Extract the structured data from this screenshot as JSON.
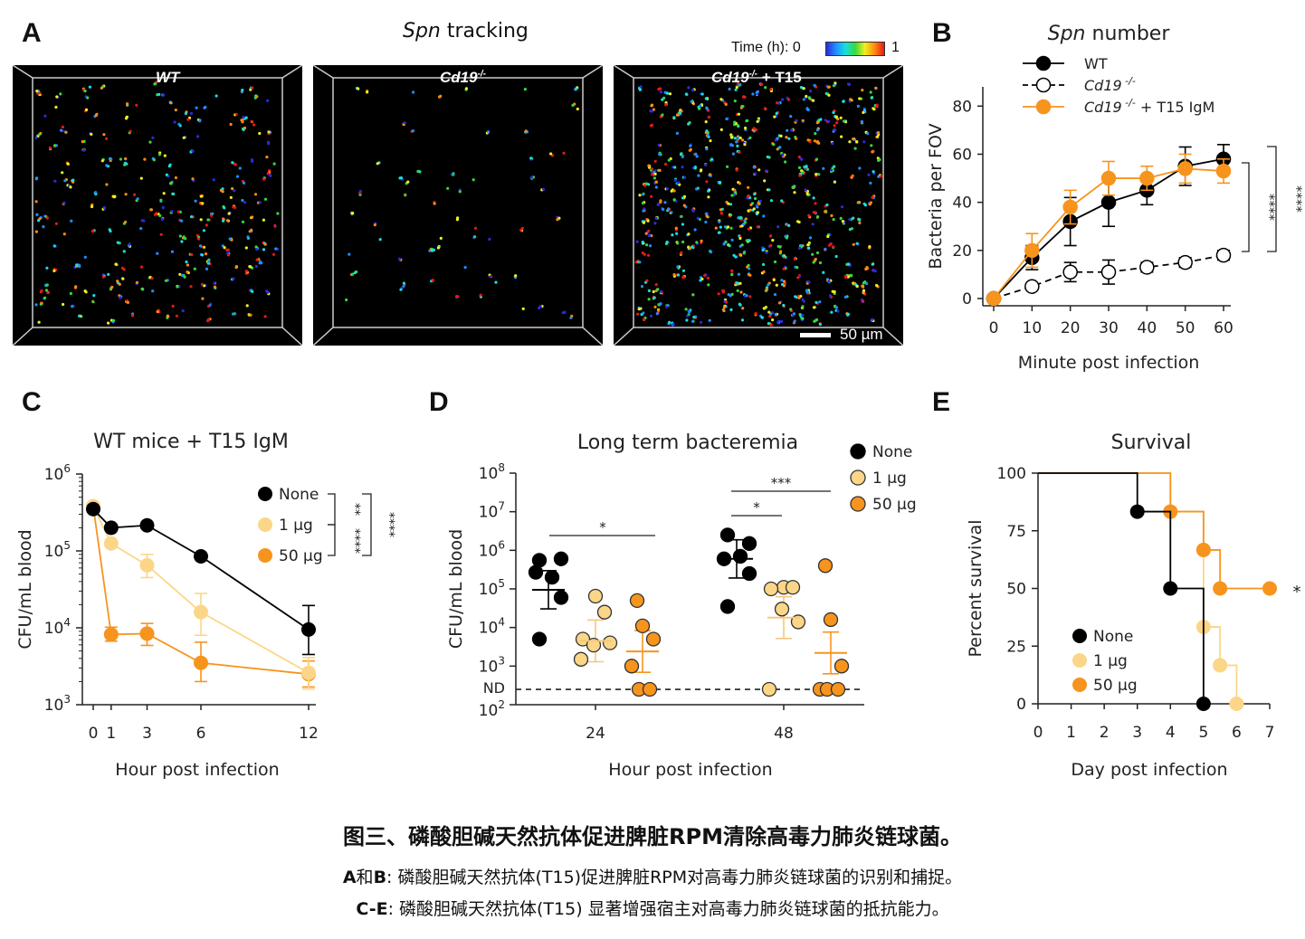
{
  "panels": {
    "A": {
      "letter": "A",
      "title_italic": "Spn",
      "title_rest": "tracking",
      "time_label": "Time (h):",
      "time_min": "0",
      "time_max": "1",
      "images": [
        "WT",
        "Cd19",
        "Cd19"
      ],
      "images_sup": [
        "",
        "-/-",
        "-/-"
      ],
      "images_suffix": [
        "",
        "",
        " + T15"
      ],
      "scale_bar": "50 µm"
    },
    "B": {
      "letter": "B"
    },
    "C": {
      "letter": "C"
    },
    "D": {
      "letter": "D"
    },
    "E": {
      "letter": "E"
    }
  },
  "colors": {
    "none": "#000000",
    "low": "#fcd688",
    "high": "#f7941d",
    "hundred": "#f7941d"
  },
  "chart_data": [
    {
      "id": "B",
      "type": "line",
      "title_italic": "Spn",
      "title": "number",
      "xlabel": "Minute post infection",
      "ylabel": "Bacteria per FOV",
      "x": [
        0,
        10,
        20,
        30,
        40,
        50,
        60
      ],
      "xlim": [
        0,
        60
      ],
      "ylim": [
        0,
        85
      ],
      "yticks": [
        0,
        20,
        40,
        60,
        80
      ],
      "series": [
        {
          "name": "WT",
          "values": [
            0,
            17,
            32,
            40,
            45,
            55,
            58
          ],
          "err": [
            0,
            5,
            10,
            10,
            6,
            8,
            6
          ],
          "color": "#000000",
          "fill": "#000000",
          "dash": false
        },
        {
          "name": "Cd19",
          "sup": "-/-",
          "values": [
            0,
            5,
            11,
            11,
            13,
            15,
            18
          ],
          "err": [
            0,
            1,
            4,
            5,
            2,
            2,
            2
          ],
          "color": "#000000",
          "fill": "#ffffff",
          "dash": true
        },
        {
          "name": "Cd19",
          "sup": "-/-",
          "suffix": " + T15 IgM",
          "values": [
            0,
            20,
            38,
            50,
            50,
            54,
            53
          ],
          "err": [
            0,
            7,
            7,
            7,
            5,
            6,
            5
          ],
          "color": "#f7941d",
          "fill": "#f7941d",
          "dash": false
        }
      ],
      "significance": [
        "****",
        "****"
      ]
    },
    {
      "id": "C",
      "type": "line",
      "title": "WT mice + T15 IgM",
      "xlabel": "Hour post infection",
      "ylabel": "CFU/mL blood",
      "log_y": true,
      "ylim_exp": [
        3,
        6
      ],
      "yticks_exp": [
        3,
        4,
        5,
        6
      ],
      "x": [
        0,
        1,
        3,
        6,
        12
      ],
      "xticks": [
        0,
        1,
        3,
        6,
        12
      ],
      "series": [
        {
          "name": "None",
          "x": [
            0,
            1,
            3,
            6,
            12
          ],
          "values": [
            350000,
            200000,
            215000,
            85000,
            9500
          ],
          "err_lo": [
            0,
            0,
            0,
            0,
            5000
          ],
          "err_hi": [
            0,
            0,
            0,
            0,
            10000
          ],
          "color": "#000000"
        },
        {
          "name": "1 µg",
          "x": [
            0,
            1,
            3,
            6,
            12
          ],
          "values": [
            380000,
            125000,
            65000,
            16000,
            2600
          ],
          "err_lo": [
            0,
            0,
            20000,
            8000,
            1000
          ],
          "err_hi": [
            0,
            0,
            25000,
            12000,
            1500
          ],
          "color": "#fcd688"
        },
        {
          "name": "50 µg",
          "x": [
            0,
            1,
            3,
            6,
            12
          ],
          "values": [
            380000,
            8200,
            8400,
            3500,
            2500
          ],
          "err_lo": [
            0,
            1500,
            2500,
            1500,
            800
          ],
          "err_hi": [
            0,
            2000,
            3000,
            3000,
            1200
          ],
          "color": "#f7941d"
        }
      ],
      "significance": [
        "**",
        "****",
        "****"
      ]
    },
    {
      "id": "D",
      "type": "scatter",
      "title": "Long term bacteremia",
      "xlabel": "Hour post infection",
      "ylabel": "CFU/mL blood",
      "log_y": true,
      "ylim_exp": [
        2,
        8
      ],
      "yticks_exp": [
        2,
        3,
        4,
        5,
        6,
        7,
        8
      ],
      "nd_label": "ND",
      "nd_value": 250,
      "categories": [
        "24",
        "48"
      ],
      "groups": [
        {
          "name": "None",
          "color": "#000000",
          "pts24": [
            550000,
            600000,
            270000,
            200000,
            60000,
            5000
          ],
          "mean24": 95000,
          "pts48": [
            2500000,
            1500000,
            600000,
            700000,
            250000,
            35000
          ],
          "mean48": 600000
        },
        {
          "name": "1 µg",
          "color": "#fcd688",
          "pts24": [
            65000,
            25000,
            5000,
            3500,
            4000,
            1500
          ],
          "mean24": 4500,
          "pts48": [
            110000,
            110000,
            100000,
            30000,
            14000,
            250
          ],
          "mean48": 18000
        },
        {
          "name": "50 µg",
          "color": "#f7941d",
          "pts24": [
            50000,
            11000,
            5000,
            1000,
            250,
            250
          ],
          "mean24": 2400,
          "pts48": [
            400000,
            16000,
            1000,
            250,
            250,
            250
          ],
          "mean48": 2200
        }
      ],
      "significance": [
        "*",
        "*",
        "***"
      ]
    },
    {
      "id": "E",
      "type": "line",
      "title": "Survival",
      "xlabel": "Day post infection",
      "ylabel": "Percent survival",
      "xlim": [
        0,
        7
      ],
      "ylim": [
        0,
        100
      ],
      "yticks": [
        0,
        25,
        50,
        75,
        100
      ],
      "series": [
        {
          "name": "None",
          "steps": [
            [
              0,
              100
            ],
            [
              3,
              100
            ],
            [
              3,
              83.3
            ],
            [
              4,
              83.3
            ],
            [
              4,
              50
            ],
            [
              5,
              50
            ],
            [
              5,
              0
            ]
          ],
          "points": [
            [
              3,
              83.3
            ],
            [
              4,
              50
            ],
            [
              5,
              0
            ]
          ],
          "color": "#000000"
        },
        {
          "name": "1 µg",
          "steps": [
            [
              0,
              100
            ],
            [
              4,
              100
            ],
            [
              4,
              83.3
            ],
            [
              5,
              83.3
            ],
            [
              5,
              33.3
            ],
            [
              5.5,
              33.3
            ],
            [
              5.5,
              16.7
            ],
            [
              6,
              16.7
            ],
            [
              6,
              0
            ]
          ],
          "points": [
            [
              4,
              83.3
            ],
            [
              5,
              33.3
            ],
            [
              5.5,
              16.7
            ],
            [
              6,
              0
            ]
          ],
          "color": "#fcd688"
        },
        {
          "name": "50 µg",
          "steps": [
            [
              0,
              100
            ],
            [
              4,
              100
            ],
            [
              4,
              83.3
            ],
            [
              5,
              83.3
            ],
            [
              5,
              66.7
            ],
            [
              5.5,
              66.7
            ],
            [
              5.5,
              50
            ],
            [
              7,
              50
            ]
          ],
          "points": [
            [
              4,
              83.3
            ],
            [
              5,
              66.7
            ],
            [
              5.5,
              50
            ],
            [
              7,
              50
            ]
          ],
          "color": "#f7941d"
        }
      ],
      "significance": [
        "*"
      ]
    }
  ],
  "caption": {
    "title": "图三、磷酸胆碱天然抗体促进脾脏RPM清除高毒力肺炎链球菌。",
    "line1_bold": "A",
    "line1_mid": "和",
    "line1_bold2": "B",
    "line1_text": ": 磷酸胆碱天然抗体(T15)促进脾脏RPM对高毒力肺炎链球菌的识别和捕捉。",
    "line2_bold": "C-E",
    "line2_text": ": 磷酸胆碱天然抗体(T15) 显著增强宿主对高毒力肺炎链球菌的抵抗能力。"
  }
}
